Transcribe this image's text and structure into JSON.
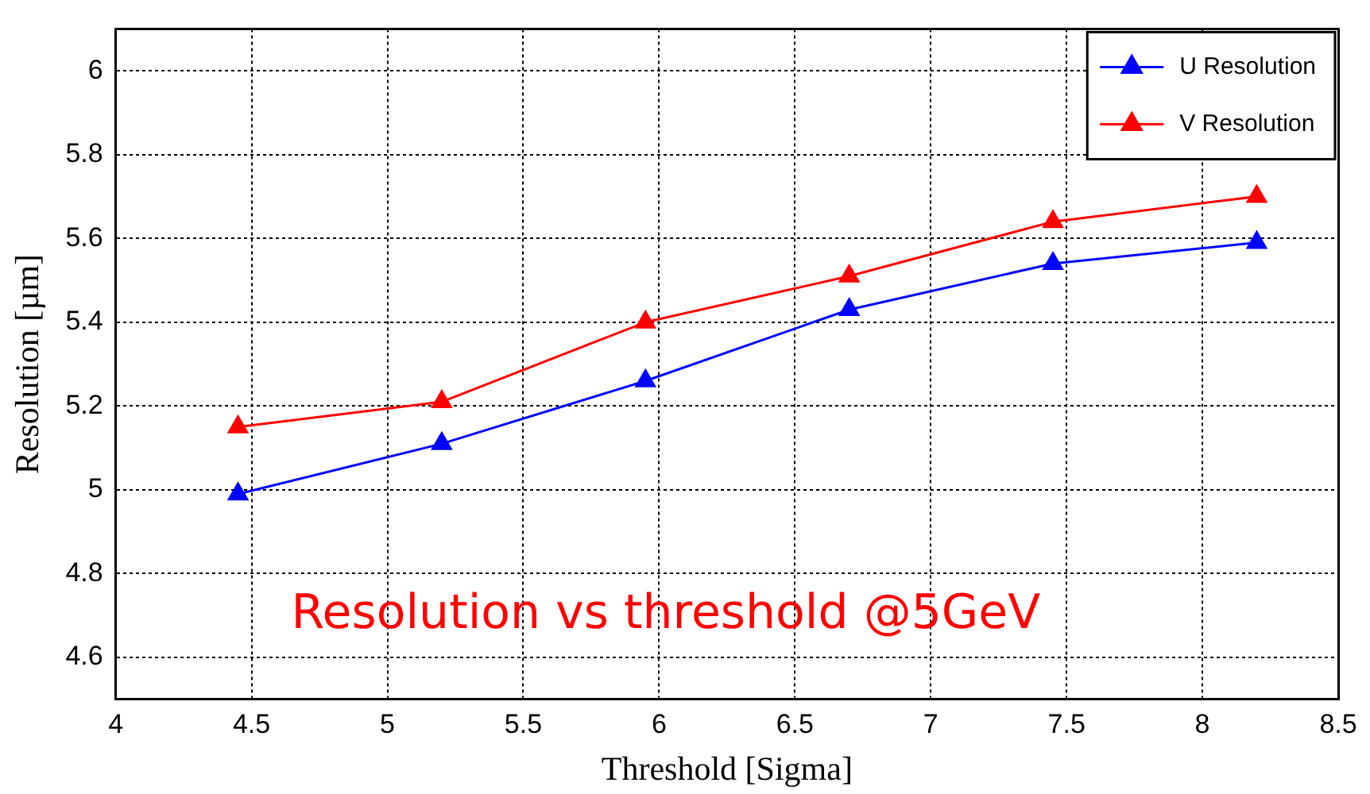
{
  "chart_data": {
    "type": "line",
    "xlabel": "Threshold [Sigma]",
    "ylabel": "Resolution [µm]",
    "annotations": [
      "Resolution vs threshold @5GeV"
    ],
    "x": [
      4.45,
      5.2,
      5.95,
      6.7,
      7.45,
      8.2
    ],
    "series": [
      {
        "name": "U Resolution",
        "color": "#0000ff",
        "values": [
          4.99,
          5.11,
          5.26,
          5.43,
          5.54,
          5.59
        ]
      },
      {
        "name": "V Resolution",
        "color": "#ff0000",
        "values": [
          5.15,
          5.21,
          5.4,
          5.51,
          5.64,
          5.7
        ]
      }
    ],
    "xlim": [
      4,
      8.5
    ],
    "xticks": [
      4,
      4.5,
      5,
      5.5,
      6,
      6.5,
      7,
      7.5,
      8,
      8.5
    ],
    "ylim": [
      4.5,
      6.1
    ],
    "yticks": [
      4.6,
      4.8,
      5,
      5.2,
      5.4,
      5.6,
      5.8,
      6
    ],
    "grid": true,
    "legend": "top right",
    "marker": "triangle",
    "line_style": "solid"
  }
}
